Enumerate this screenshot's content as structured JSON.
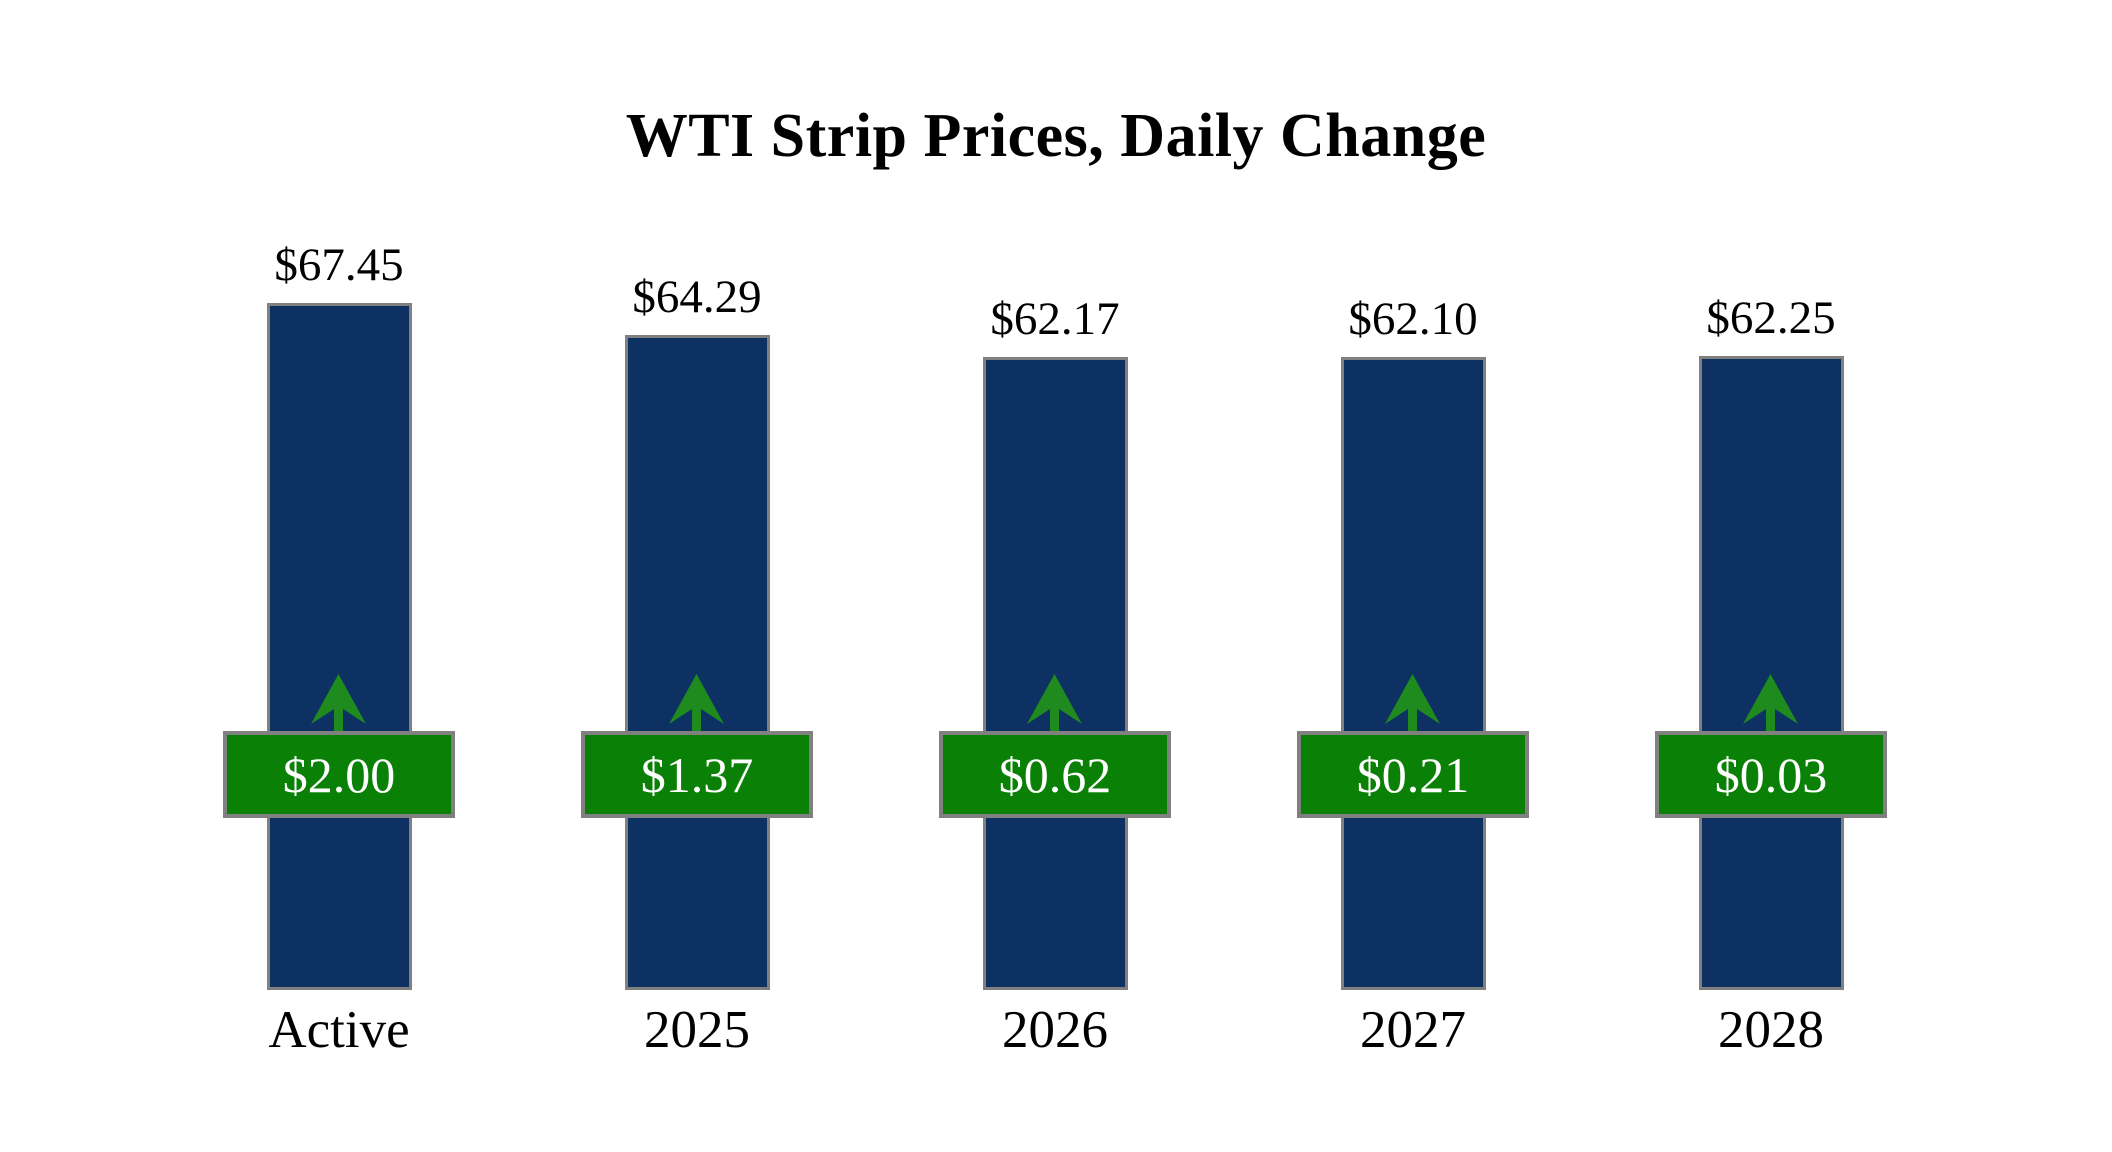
{
  "chart_data": {
    "type": "bar",
    "title": "WTI Strip Prices, Daily Change",
    "categories": [
      "Active",
      "2025",
      "2026",
      "2027",
      "2028"
    ],
    "series": [
      {
        "name": "strip_price",
        "labels": [
          "$67.45",
          "$64.29",
          "$62.17",
          "$62.10",
          "$62.25"
        ],
        "values": [
          67.45,
          64.29,
          62.17,
          62.1,
          62.25
        ]
      },
      {
        "name": "daily_change",
        "labels": [
          "$2.00",
          "$1.37",
          "$0.62",
          "$0.21",
          "$0.03"
        ],
        "values": [
          2.0,
          1.37,
          0.62,
          0.21,
          0.03
        ],
        "direction": "up"
      }
    ],
    "ylim": [
      0,
      67.45
    ],
    "grid": false,
    "legend": "none",
    "colors": {
      "background": "#ffffff",
      "text": "#000000",
      "bar_fill": "#0d3163",
      "bar_border": "#808080",
      "badge_fill": "#0a8006",
      "badge_border": "#808080",
      "badge_text": "#ffffff",
      "arrow": "#1f8b1f"
    }
  }
}
